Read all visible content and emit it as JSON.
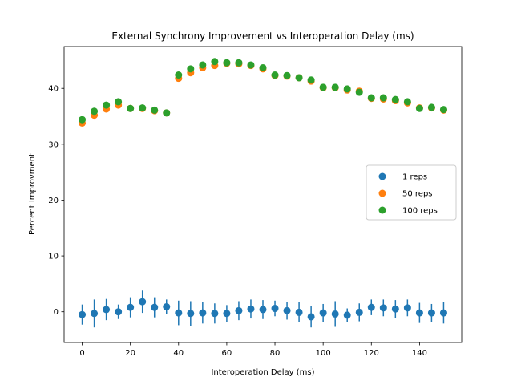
{
  "chart_data": {
    "type": "scatter",
    "title": "External Synchrony Improvement vs Interoperation Delay (ms)",
    "xlabel": "Interoperation Delay (ms)",
    "ylabel": "Percent Improvment",
    "xlim": [
      -7.5,
      157.5
    ],
    "ylim": [
      -5.5,
      47.5
    ],
    "x_ticks": [
      0,
      20,
      40,
      60,
      80,
      100,
      120,
      140
    ],
    "y_ticks": [
      0,
      10,
      20,
      30,
      40
    ],
    "legend_position": "center-right",
    "x": [
      0,
      5,
      10,
      15,
      20,
      25,
      30,
      35,
      40,
      45,
      50,
      55,
      60,
      65,
      70,
      75,
      80,
      85,
      90,
      95,
      100,
      105,
      110,
      115,
      120,
      125,
      130,
      135,
      140,
      145,
      150
    ],
    "series": [
      {
        "name": "1 reps",
        "color": "#1f77b4",
        "values": [
          -0.5,
          -0.3,
          0.4,
          0.0,
          0.8,
          1.8,
          0.8,
          0.9,
          -0.2,
          -0.3,
          -0.2,
          -0.3,
          -0.3,
          0.2,
          0.5,
          0.4,
          0.6,
          0.2,
          -0.1,
          -0.9,
          -0.2,
          -0.4,
          -0.6,
          -0.1,
          0.8,
          0.7,
          0.5,
          0.7,
          -0.2,
          -0.2,
          -0.2
        ],
        "errors": [
          1.8,
          2.5,
          1.9,
          1.3,
          1.8,
          2.0,
          1.8,
          1.3,
          2.2,
          2.2,
          1.9,
          1.8,
          1.5,
          1.7,
          1.7,
          1.7,
          1.4,
          1.6,
          1.8,
          1.9,
          1.6,
          2.3,
          1.2,
          1.6,
          1.4,
          1.5,
          1.6,
          1.5,
          1.8,
          1.6,
          1.9
        ]
      },
      {
        "name": "50 reps",
        "color": "#ff7f0e",
        "values": [
          33.8,
          35.2,
          36.3,
          37.0,
          36.4,
          36.4,
          36.0,
          35.6,
          41.8,
          42.8,
          43.7,
          44.1,
          44.5,
          44.4,
          44.1,
          43.5,
          42.3,
          42.2,
          41.9,
          41.3,
          40.1,
          40.1,
          39.7,
          39.5,
          38.2,
          38.1,
          37.8,
          37.4,
          36.5,
          36.5,
          36.1
        ]
      },
      {
        "name": "100 reps",
        "color": "#2ca02c",
        "values": [
          34.4,
          35.9,
          37.0,
          37.6,
          36.4,
          36.5,
          36.1,
          35.6,
          42.4,
          43.5,
          44.2,
          44.8,
          44.6,
          44.6,
          44.2,
          43.7,
          42.4,
          42.3,
          41.9,
          41.5,
          40.2,
          40.2,
          39.9,
          39.3,
          38.3,
          38.3,
          38.0,
          37.6,
          36.4,
          36.6,
          36.2
        ]
      }
    ]
  }
}
